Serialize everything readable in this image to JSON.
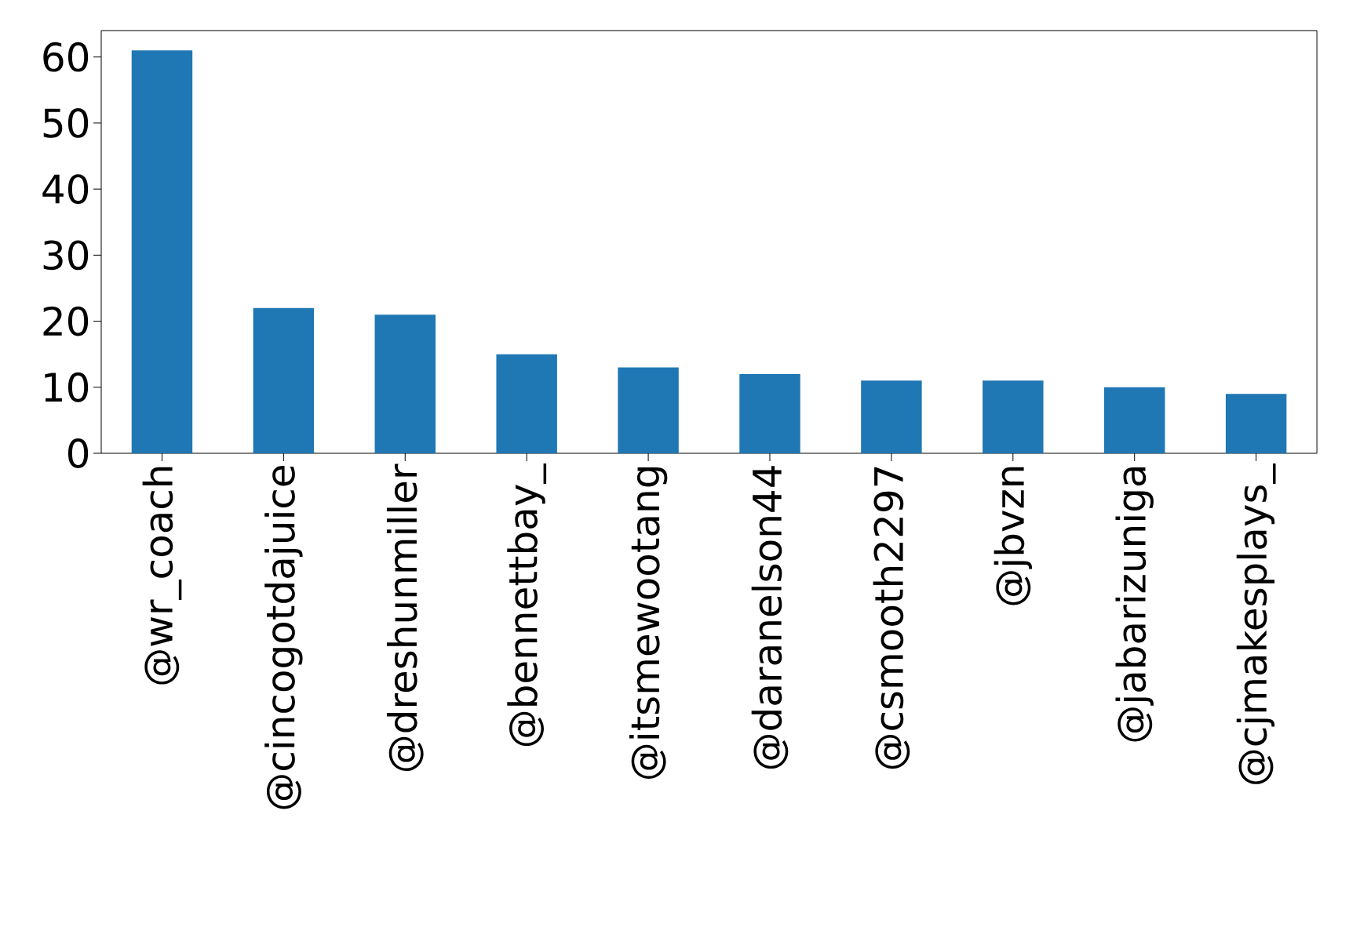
{
  "chart_data": {
    "type": "bar",
    "categories": [
      "@wr_coach",
      "@cincogotdajuice",
      "@dreshunmiller",
      "@bennettbay_",
      "@itsmewootang",
      "@daranelson44",
      "@csmooth2297",
      "@jbvzn",
      "@jabarizuniga",
      "@cjmakesplays_"
    ],
    "values": [
      61,
      22,
      21,
      15,
      13,
      12,
      11,
      11,
      10,
      9
    ],
    "color": "#1f77b4",
    "ylim": [
      0,
      64
    ],
    "yticks": [
      0,
      10,
      20,
      30,
      40,
      50,
      60
    ]
  }
}
